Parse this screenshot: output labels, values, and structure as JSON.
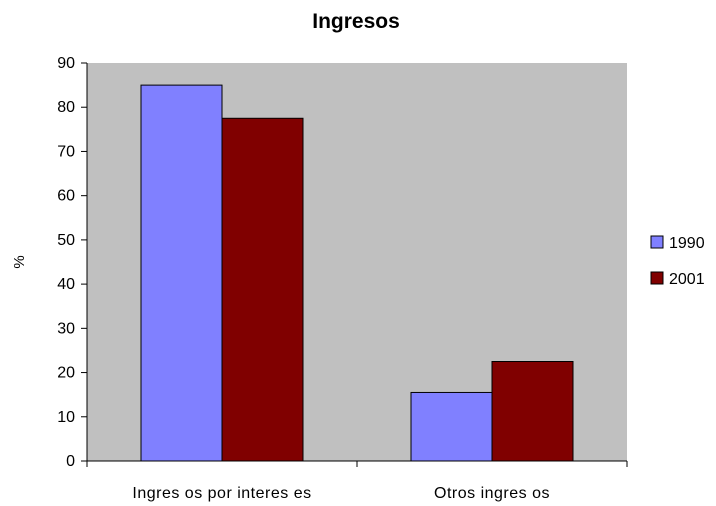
{
  "chart_data": {
    "type": "bar",
    "title": "Ingresos",
    "xlabel": "",
    "ylabel": "%",
    "categories": [
      "Ingres os por interes es",
      "Otros ingres os"
    ],
    "series": [
      {
        "name": "1990",
        "values": [
          85,
          15.5
        ],
        "color": "#8080FF"
      },
      {
        "name": "2001",
        "values": [
          77.5,
          22.5
        ],
        "color": "#800000"
      }
    ],
    "ylim": [
      0,
      90
    ],
    "yticks": [
      0,
      10,
      20,
      30,
      40,
      50,
      60,
      70,
      80,
      90
    ],
    "grid": false,
    "plot_background": "#C0C0C0",
    "legend_position": "right"
  }
}
